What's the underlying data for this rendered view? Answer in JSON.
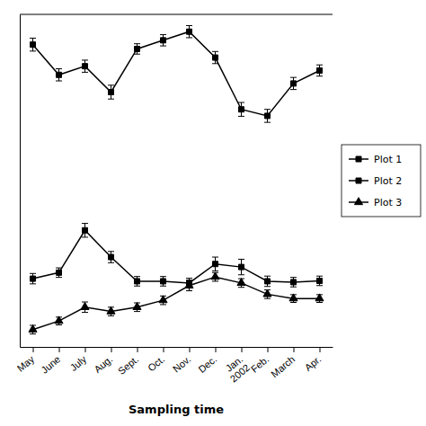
{
  "chart_data": {
    "type": "line",
    "xlabel": "Sampling time",
    "categories": [
      "May",
      "June",
      "July",
      "Aug.",
      "Sept.",
      "Oct.",
      "Nov.",
      "Dec.",
      "Jan.\n2002",
      "Feb.",
      "March",
      "Apr."
    ],
    "series": [
      {
        "name": " Plot 1",
        "color": "#000000",
        "marker": "square",
        "values": [
          800,
          730,
          750,
          690,
          790,
          810,
          830,
          770,
          650,
          635,
          710,
          740
        ],
        "errors": [
          15,
          14,
          14,
          16,
          12,
          13,
          14,
          14,
          16,
          15,
          14,
          13
        ]
      },
      {
        "name": " Plot 2",
        "color": "#000000",
        "marker": "square",
        "values": [
          258,
          272,
          370,
          308,
          252,
          252,
          248,
          292,
          285,
          252,
          250,
          253
        ],
        "errors": [
          12,
          11,
          16,
          13,
          11,
          11,
          11,
          16,
          18,
          12,
          11,
          11
        ]
      },
      {
        "name": " Plot 3",
        "color": "#000000",
        "marker": "triangle",
        "values": [
          140,
          160,
          192,
          182,
          192,
          208,
          242,
          262,
          248,
          222,
          212,
          212
        ],
        "errors": [
          10,
          9,
          12,
          10,
          10,
          10,
          12,
          10,
          10,
          10,
          9,
          9
        ]
      }
    ],
    "ylim": [
      100,
      870
    ],
    "tick_labels": "x",
    "legend": "right"
  }
}
